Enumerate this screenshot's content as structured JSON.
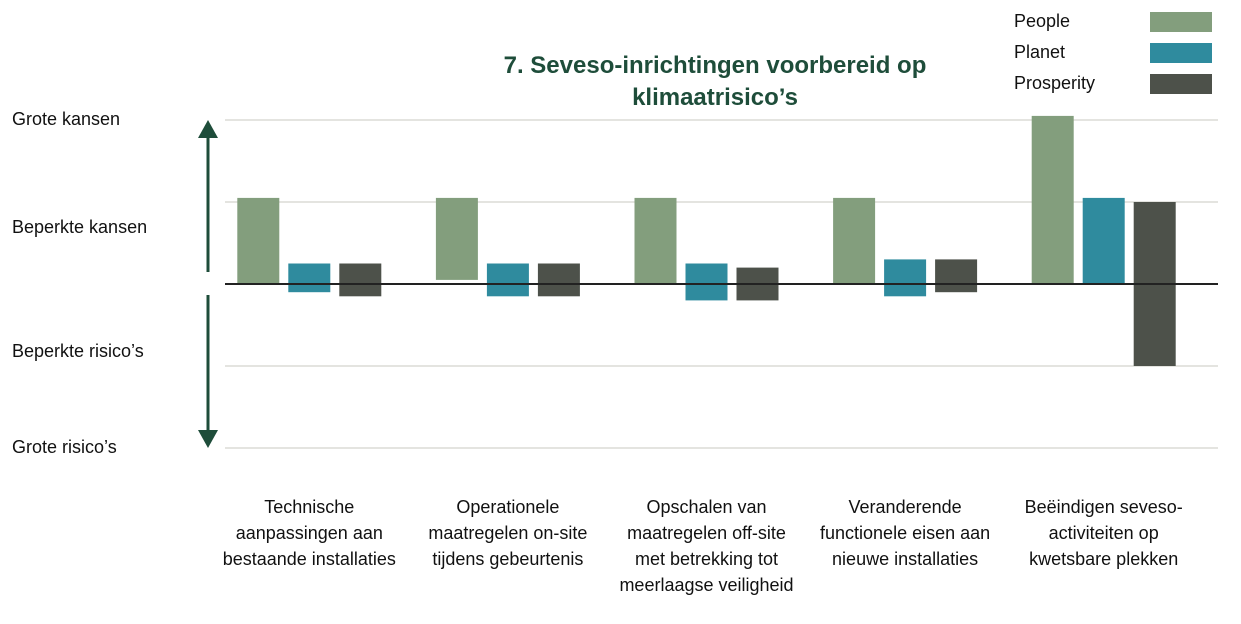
{
  "chart_data": {
    "type": "floating_bar",
    "title": "7. Seveso-inrichtingen voorbereid op klimaatrisico’s",
    "categories": [
      "Technische aanpassingen aan bestaande installaties",
      "Operationele maatregelen on-site tijdens gebeurtenis",
      "Opschalen van maatregelen off-site met betrekking tot meerlaagse veiligheid",
      "Veranderende functionele eisen aan nieuwe installaties",
      "Beëindigen seveso-activiteiten op kwetsbare plekken"
    ],
    "series": [
      {
        "name": "People",
        "color": "#839e7d",
        "values": [
          [
            0,
            1.05
          ],
          [
            0.05,
            1.05
          ],
          [
            0,
            1.05
          ],
          [
            0,
            1.05
          ],
          [
            0,
            2.05
          ]
        ]
      },
      {
        "name": "Planet",
        "color": "#2f8b9e",
        "values": [
          [
            -0.1,
            0.25
          ],
          [
            -0.15,
            0.25
          ],
          [
            -0.2,
            0.25
          ],
          [
            -0.15,
            0.3
          ],
          [
            0,
            1.05
          ]
        ]
      },
      {
        "name": "Prosperity",
        "color": "#4d514a",
        "values": [
          [
            -0.15,
            0.25
          ],
          [
            -0.15,
            0.25
          ],
          [
            -0.2,
            0.2
          ],
          [
            -0.1,
            0.3
          ],
          [
            -1,
            1
          ]
        ]
      }
    ],
    "ylim": [
      -2,
      2
    ],
    "yticks": [
      {
        "value": 2,
        "label": "Grote kansen"
      },
      {
        "value": 1,
        "label": "Beperkte kansen"
      },
      {
        "value": -1,
        "label": "Beperkte risico’s"
      },
      {
        "value": -2,
        "label": "Grote risico’s"
      }
    ],
    "grid": true,
    "legend": "upper right"
  }
}
